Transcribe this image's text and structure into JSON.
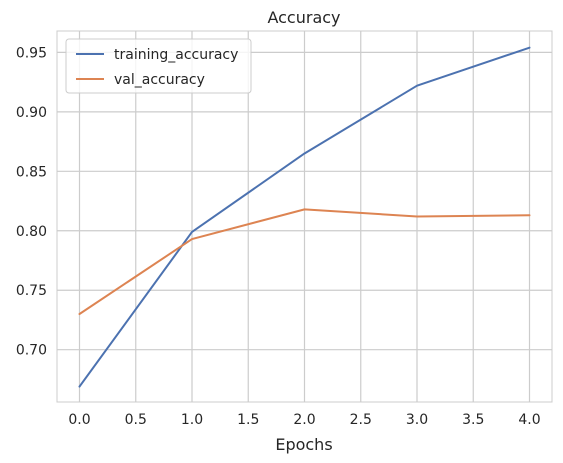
{
  "chart_data": {
    "type": "line",
    "title": "Accuracy",
    "xlabel": "Epochs",
    "ylabel": "",
    "x": [
      0,
      1,
      2,
      3,
      4
    ],
    "xlim": [
      -0.2,
      4.2
    ],
    "ylim": [
      0.656,
      0.968
    ],
    "xticks": [
      0.0,
      0.5,
      1.0,
      1.5,
      2.0,
      2.5,
      3.0,
      3.5,
      4.0
    ],
    "xtick_labels": [
      "0.0",
      "0.5",
      "1.0",
      "1.5",
      "2.0",
      "2.5",
      "3.0",
      "3.5",
      "4.0"
    ],
    "yticks": [
      0.7,
      0.75,
      0.8,
      0.85,
      0.9,
      0.95
    ],
    "ytick_labels": [
      "0.70",
      "0.75",
      "0.80",
      "0.85",
      "0.90",
      "0.95"
    ],
    "grid": true,
    "legend_position": "top-left",
    "series": [
      {
        "name": "training_accuracy",
        "color": "#4c72b0",
        "values": [
          0.669,
          0.799,
          0.865,
          0.922,
          0.954
        ]
      },
      {
        "name": "val_accuracy",
        "color": "#dd8452",
        "values": [
          0.73,
          0.793,
          0.818,
          0.812,
          0.813
        ]
      }
    ]
  }
}
